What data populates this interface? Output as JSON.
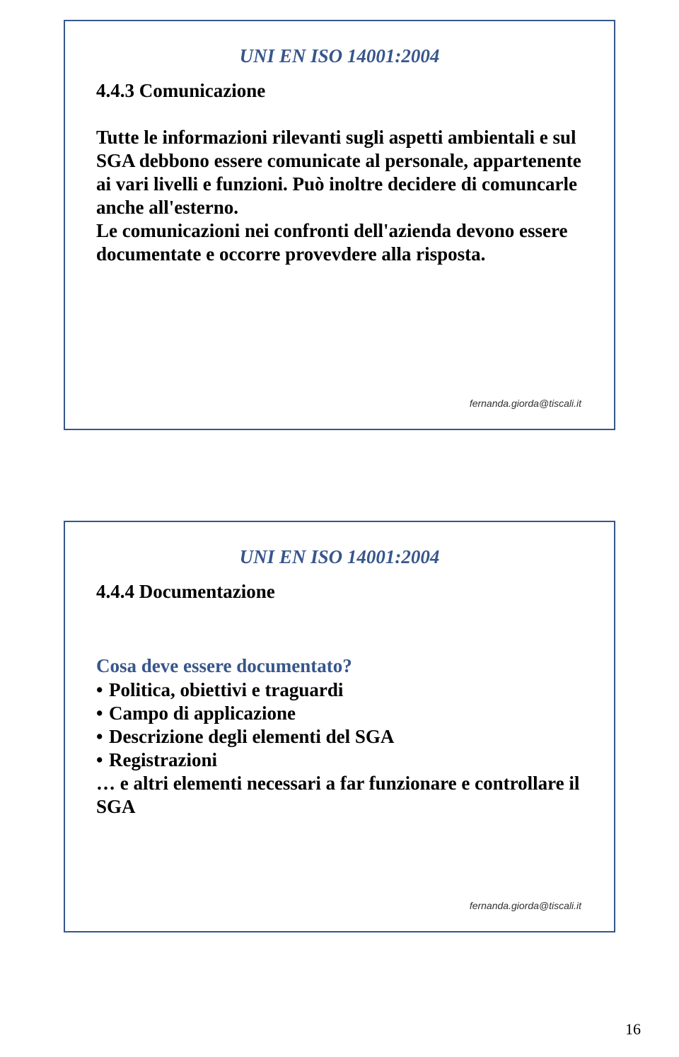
{
  "page_number": "16",
  "colors": {
    "frame_border": "#37568b",
    "accent_text": "#37568b",
    "body_text": "#000000",
    "email_text": "#2f2f2f",
    "background": "#ffffff"
  },
  "fonts": {
    "body_family": "Times New Roman",
    "email_family": "Arial",
    "title_size_pt": 20,
    "body_size_pt": 20,
    "email_size_pt": 10
  },
  "slide1": {
    "iso_label": "UNI EN ISO 14001:2004",
    "section": "4.4.3 Comunicazione",
    "para1": "Tutte le informazioni rilevanti sugli aspetti ambientali e sul SGA debbono essere comunicate al personale, appartenente ai vari livelli e funzioni. Può inoltre decidere di comuncarle anche all'esterno.",
    "para2": "Le comunicazioni nei confronti dell'azienda devono essere documentate e occorre provevdere alla risposta.",
    "email": "fernanda.giorda@tiscali.it"
  },
  "slide2": {
    "iso_label": "UNI EN ISO 14001:2004",
    "section": "4.4.4 Documentazione",
    "question": "Cosa deve essere documentato?",
    "bullets": [
      "Politica, obiettivi e traguardi",
      "Campo di applicazione",
      "Descrizione degli elementi del SGA",
      "Registrazioni"
    ],
    "trailing": "… e altri elementi necessari a far funzionare e controllare il SGA",
    "email": "fernanda.giorda@tiscali.it"
  }
}
